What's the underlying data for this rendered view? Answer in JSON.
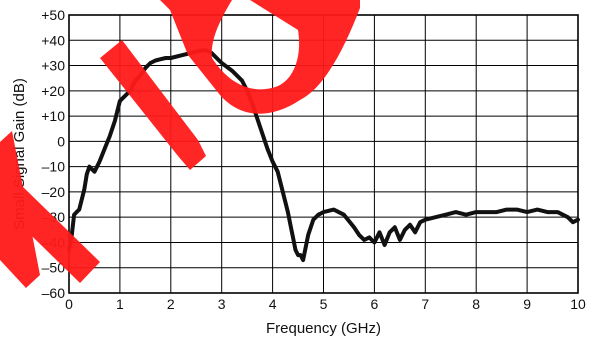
{
  "chart_data": {
    "type": "line",
    "xlabel": "Frequency (GHz)",
    "ylabel": "Small Signal Gain (dB)",
    "xlim": [
      0,
      10
    ],
    "ylim": [
      -60,
      50
    ],
    "x_ticks": [
      "0",
      "1",
      "2",
      "3",
      "4",
      "5",
      "6",
      "7",
      "8",
      "9",
      "10"
    ],
    "y_ticks": [
      "+50",
      "+40",
      "+30",
      "+20",
      "+10",
      "0",
      "–10",
      "–20",
      "–30",
      "–40",
      "–50",
      "–60"
    ],
    "grid": true,
    "watermark_text": "NOT RECOMMENDED FOR NEW DESIGNS",
    "watermark_color": "#ff0000",
    "line_color": "#111111",
    "series": [
      {
        "x": [
          0,
          0.05,
          0.1,
          0.15,
          0.2,
          0.3,
          0.35,
          0.4,
          0.45,
          0.5,
          0.6,
          0.7,
          0.8,
          0.9,
          1.0,
          1.1,
          1.2,
          1.3,
          1.4,
          1.5,
          1.6,
          1.7,
          1.8,
          1.9,
          2.0,
          2.2,
          2.4,
          2.5,
          2.6,
          2.7,
          2.8,
          2.9,
          3.0,
          3.2,
          3.4,
          3.5,
          3.6,
          3.7,
          3.8,
          3.9,
          4.0,
          4.1,
          4.2,
          4.3,
          4.35,
          4.4,
          4.45,
          4.5,
          4.55,
          4.6,
          4.7,
          4.8,
          4.9,
          5.0,
          5.2,
          5.4,
          5.6,
          5.7,
          5.8,
          5.9,
          6.0,
          6.1,
          6.2,
          6.3,
          6.4,
          6.5,
          6.6,
          6.7,
          6.8,
          6.9,
          7.0,
          7.2,
          7.4,
          7.6,
          7.8,
          8.0,
          8.2,
          8.4,
          8.6,
          8.8,
          9.0,
          9.2,
          9.4,
          9.6,
          9.8,
          9.9,
          10.0
        ],
        "values": [
          -43,
          -38,
          -29,
          -28,
          -27,
          -19,
          -13,
          -10,
          -11,
          -12,
          -8,
          -3,
          2,
          8,
          16,
          18,
          20,
          24,
          26,
          29,
          31,
          32,
          32.5,
          33,
          33,
          34,
          35,
          35.5,
          36,
          36,
          35,
          33,
          31,
          28,
          24,
          20,
          15,
          9,
          3,
          -3,
          -8,
          -12,
          -20,
          -28,
          -33,
          -38,
          -43,
          -45,
          -45,
          -47,
          -37,
          -31,
          -29,
          -28,
          -27,
          -29,
          -34,
          -37,
          -39,
          -38,
          -40,
          -36,
          -41,
          -36,
          -34,
          -39,
          -35,
          -33,
          -36,
          -32,
          -31,
          -30,
          -29,
          -28,
          -29,
          -28,
          -28,
          -28,
          -27,
          -27,
          -28,
          -27,
          -28,
          -28,
          -30,
          -32,
          -31
        ]
      }
    ]
  }
}
